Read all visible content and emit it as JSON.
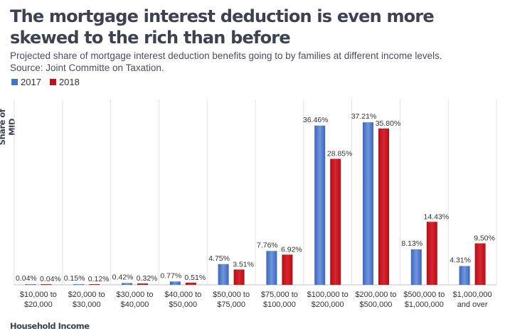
{
  "title": "The mortgage interest deduction is even more skewed to the rich than before",
  "subtitle": "Projected share of mortgage interest deduction benefits going to by families at different income levels. Source: Joint Committe on Taxation.",
  "ylabel": "Share of MID",
  "xlabel": "Household Income",
  "colors": {
    "2017": "#4472c4",
    "2018": "#c0121c"
  },
  "chart_data": {
    "type": "bar",
    "title": "The mortgage interest deduction is even more skewed to the rich than before",
    "xlabel": "Household Income",
    "ylabel": "Share of MID",
    "ylim": [
      0,
      40
    ],
    "grid": "vertical separators",
    "legend": "top-left",
    "categories": [
      [
        "$10,000 to",
        "$20,000"
      ],
      [
        "$20,000 to",
        "$30,000"
      ],
      [
        "$30,000 to",
        "$40,000"
      ],
      [
        "$40,000 to",
        "$50,000"
      ],
      [
        "$50,000 to",
        "$75,000"
      ],
      [
        "$75,000 to",
        "$100,000"
      ],
      [
        "$100,000 to",
        "$200,000"
      ],
      [
        "$200,000 to",
        "$500,000"
      ],
      [
        "$500,000 to",
        "$1,000,000"
      ],
      [
        "$1,000,000",
        "and over"
      ]
    ],
    "series": [
      {
        "name": "2017",
        "values": [
          0.04,
          0.15,
          0.42,
          0.77,
          4.75,
          7.76,
          36.46,
          37.21,
          8.13,
          4.31
        ],
        "labels": [
          "0.04%",
          "0.15%",
          "0.42%",
          "0.77%",
          "4.75%",
          "7.76%",
          "36.46%",
          "37.21%",
          "8.13%",
          "4.31%"
        ]
      },
      {
        "name": "2018",
        "values": [
          0.04,
          0.12,
          0.32,
          0.51,
          3.51,
          6.92,
          28.85,
          35.8,
          14.43,
          9.5
        ],
        "labels": [
          "0.04%",
          "0.12%",
          "0.32%",
          "0.51%",
          "3.51%",
          "6.92%",
          "28.85%",
          "35.80%",
          "14.43%",
          "9.50%"
        ]
      }
    ]
  }
}
